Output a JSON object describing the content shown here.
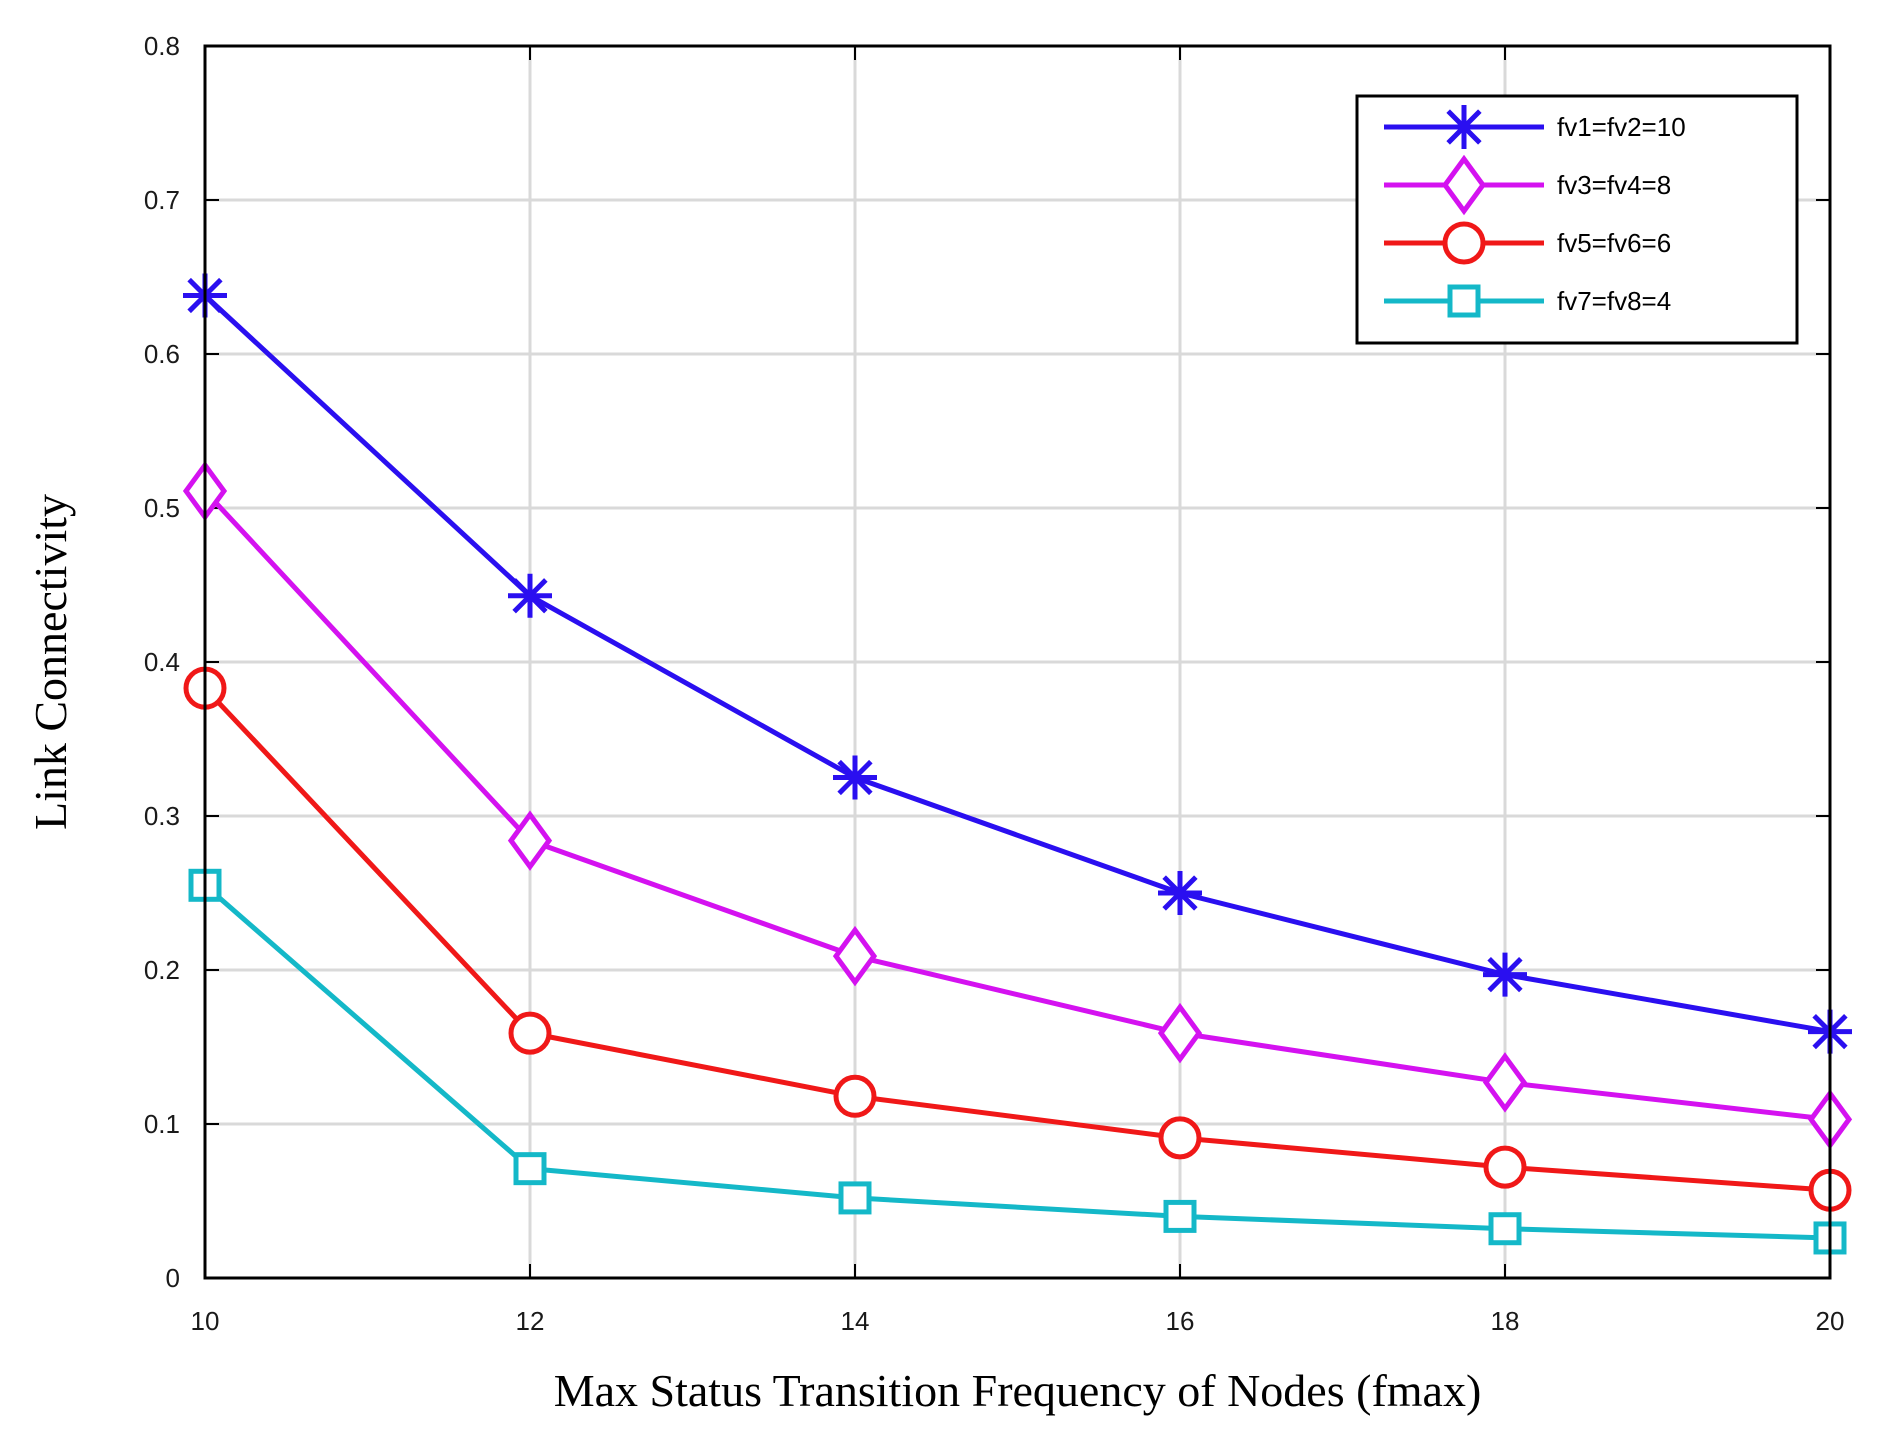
{
  "chart_data": {
    "type": "line",
    "title": "",
    "xlabel": "Max Status Transition Frequency of Nodes (fmax)",
    "ylabel": "Link Connectivity",
    "x": [
      10,
      12,
      14,
      16,
      18,
      20
    ],
    "xlim": [
      10,
      20
    ],
    "ylim": [
      0,
      0.8
    ],
    "xticks": [
      "10",
      "12",
      "14",
      "16",
      "18",
      "20"
    ],
    "yticks": [
      "0",
      "0.1",
      "0.2",
      "0.3",
      "0.4",
      "0.5",
      "0.6",
      "0.7",
      "0.8"
    ],
    "grid": true,
    "legend_position": "top-right",
    "series": [
      {
        "name": "fv1=fv2=10",
        "color": "#2a0ff0",
        "marker": "asterisk",
        "values": [
          0.638,
          0.443,
          0.325,
          0.25,
          0.197,
          0.16
        ]
      },
      {
        "name": "fv3=fv4=8",
        "color": "#d412f0",
        "marker": "diamond",
        "values": [
          0.511,
          0.284,
          0.209,
          0.159,
          0.127,
          0.103
        ]
      },
      {
        "name": "fv5=fv6=6",
        "color": "#f01818",
        "marker": "circle",
        "values": [
          0.383,
          0.159,
          0.118,
          0.091,
          0.072,
          0.057
        ]
      },
      {
        "name": "fv7=fv8=4",
        "color": "#14b8c8",
        "marker": "square",
        "values": [
          0.255,
          0.071,
          0.052,
          0.04,
          0.032,
          0.026
        ]
      }
    ]
  }
}
